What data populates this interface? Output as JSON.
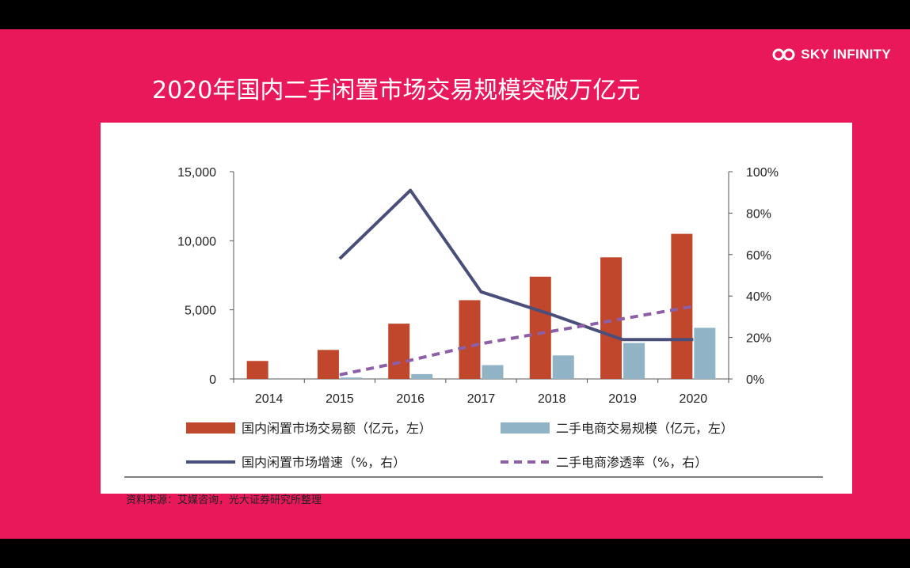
{
  "slide": {
    "background": "#e8185a",
    "brand": "SKY INFINITY",
    "brand_icon": "infinity-icon",
    "title": "2020年国内二手闲置市场交易规模突破万亿元"
  },
  "source_note": "资料来源：艾媒咨询，光大证券研究所整理",
  "chart_data": {
    "type": "bar",
    "title": "",
    "categories": [
      "2014",
      "2015",
      "2016",
      "2017",
      "2018",
      "2019",
      "2020"
    ],
    "y_left": {
      "range": [
        0,
        15000
      ],
      "ticks": [
        0,
        5000,
        10000,
        15000
      ],
      "tick_labels": [
        "0",
        "5,000",
        "10,000",
        "15,000"
      ]
    },
    "y_right": {
      "range": [
        0,
        100
      ],
      "ticks": [
        0,
        20,
        40,
        60,
        80,
        100
      ],
      "tick_labels": [
        "0%",
        "20%",
        "40%",
        "60%",
        "80%",
        "100%"
      ]
    },
    "grid": false,
    "legend_position": "bottom",
    "series": [
      {
        "name": "国内闲置市场交易额（亿元，左）",
        "kind": "bar",
        "axis": "left",
        "color": "#c0472b",
        "values": [
          1300,
          2100,
          4000,
          5700,
          7400,
          8800,
          10500
        ]
      },
      {
        "name": "二手电商交易规模（亿元，左）",
        "kind": "bar",
        "axis": "left",
        "color": "#90b3c5",
        "values": [
          null,
          100,
          350,
          1000,
          1700,
          2600,
          3700
        ]
      },
      {
        "name": "国内闲置市场增速（%，右）",
        "kind": "line",
        "axis": "right",
        "color": "#4a4e7a",
        "values": [
          null,
          58,
          91,
          42,
          31,
          19,
          19
        ]
      },
      {
        "name": "二手电商渗透率（%，右）",
        "kind": "dashed-line",
        "axis": "right",
        "color": "#8e5ea6",
        "values": [
          null,
          2,
          9,
          17,
          23,
          29,
          35
        ]
      }
    ]
  }
}
